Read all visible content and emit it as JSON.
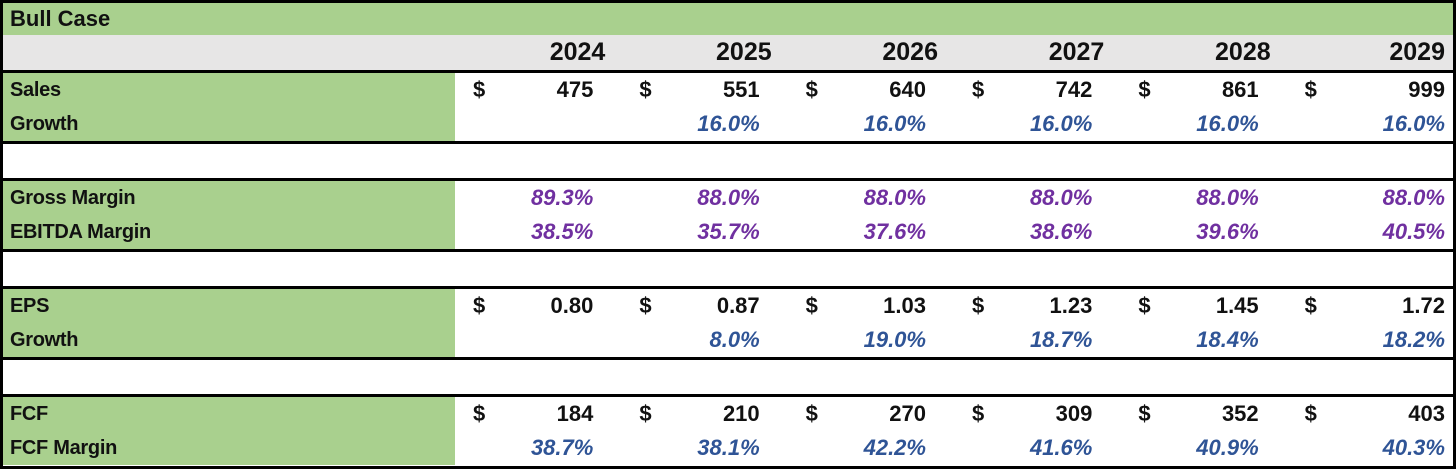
{
  "title": "Bull Case",
  "currency_symbol": "$",
  "years": [
    "2024",
    "2025",
    "2026",
    "2027",
    "2028",
    "2029"
  ],
  "colors": {
    "green": "#a9d08e",
    "gray": "#e7e6e6",
    "blue": "#2f5496",
    "purple": "#7030a0",
    "border": "#000000"
  },
  "sections": [
    {
      "rows": [
        {
          "label": "Sales",
          "type": "currency",
          "color": "black",
          "values": [
            "475",
            "551",
            "640",
            "742",
            "861",
            "999"
          ]
        },
        {
          "label": "Growth",
          "type": "pct",
          "color": "blue",
          "values": [
            "",
            "16.0%",
            "16.0%",
            "16.0%",
            "16.0%",
            "16.0%"
          ]
        }
      ]
    },
    {
      "rows": [
        {
          "label": "Gross Margin",
          "type": "pct",
          "color": "purple",
          "values": [
            "89.3%",
            "88.0%",
            "88.0%",
            "88.0%",
            "88.0%",
            "88.0%"
          ]
        },
        {
          "label": "EBITDA Margin",
          "type": "pct",
          "color": "purple",
          "values": [
            "38.5%",
            "35.7%",
            "37.6%",
            "38.6%",
            "39.6%",
            "40.5%"
          ]
        }
      ]
    },
    {
      "rows": [
        {
          "label": "EPS",
          "type": "currency",
          "color": "black",
          "values": [
            "0.80",
            "0.87",
            "1.03",
            "1.23",
            "1.45",
            "1.72"
          ]
        },
        {
          "label": "Growth",
          "type": "pct",
          "color": "blue",
          "values": [
            "",
            "8.0%",
            "19.0%",
            "18.7%",
            "18.4%",
            "18.2%"
          ]
        }
      ]
    },
    {
      "rows": [
        {
          "label": "FCF",
          "type": "currency",
          "color": "black",
          "values": [
            "184",
            "210",
            "270",
            "309",
            "352",
            "403"
          ]
        },
        {
          "label": "FCF Margin",
          "type": "pct",
          "color": "blue",
          "values": [
            "38.7%",
            "38.1%",
            "42.2%",
            "41.6%",
            "40.9%",
            "40.3%"
          ]
        }
      ]
    }
  ],
  "chart_data": {
    "type": "table",
    "title": "Bull Case",
    "categories": [
      "2024",
      "2025",
      "2026",
      "2027",
      "2028",
      "2029"
    ],
    "series": [
      {
        "name": "Sales ($)",
        "values": [
          475,
          551,
          640,
          742,
          861,
          999
        ]
      },
      {
        "name": "Sales Growth",
        "values": [
          null,
          0.16,
          0.16,
          0.16,
          0.16,
          0.16
        ]
      },
      {
        "name": "Gross Margin",
        "values": [
          0.893,
          0.88,
          0.88,
          0.88,
          0.88,
          0.88
        ]
      },
      {
        "name": "EBITDA Margin",
        "values": [
          0.385,
          0.357,
          0.376,
          0.386,
          0.396,
          0.405
        ]
      },
      {
        "name": "EPS ($)",
        "values": [
          0.8,
          0.87,
          1.03,
          1.23,
          1.45,
          1.72
        ]
      },
      {
        "name": "EPS Growth",
        "values": [
          null,
          0.08,
          0.19,
          0.187,
          0.184,
          0.182
        ]
      },
      {
        "name": "FCF ($)",
        "values": [
          184,
          210,
          270,
          309,
          352,
          403
        ]
      },
      {
        "name": "FCF Margin",
        "values": [
          0.387,
          0.381,
          0.422,
          0.416,
          0.409,
          0.403
        ]
      }
    ]
  }
}
